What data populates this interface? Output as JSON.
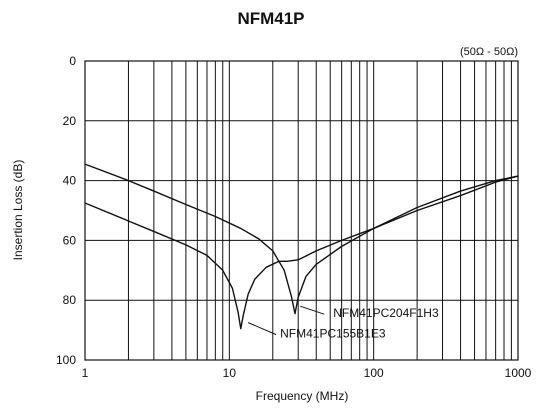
{
  "chart_data": {
    "type": "line",
    "title": "NFM41P",
    "xlabel": "Frequency (MHz)",
    "ylabel": "Insertion Loss (dB)",
    "note": "(50Ω - 50Ω)",
    "x_scale": "log",
    "xlim": [
      1,
      1000
    ],
    "ylim": [
      0,
      100
    ],
    "y_inverted": true,
    "grid": true,
    "x_ticks": [
      {
        "value": 1,
        "label": "1"
      },
      {
        "value": 10,
        "label": "10"
      },
      {
        "value": 100,
        "label": "100"
      },
      {
        "value": 1000,
        "label": "1000"
      }
    ],
    "y_ticks": [
      {
        "value": 0,
        "label": "0"
      },
      {
        "value": 20,
        "label": "20"
      },
      {
        "value": 40,
        "label": "40"
      },
      {
        "value": 60,
        "label": "60"
      },
      {
        "value": 80,
        "label": "80"
      },
      {
        "value": 100,
        "label": "100"
      }
    ],
    "series": [
      {
        "name": "NFM41PC204F1H3",
        "x": [
          1,
          2,
          3,
          5,
          8,
          12,
          16,
          20,
          24,
          27,
          28.5,
          30,
          34,
          40,
          60,
          100,
          200,
          400,
          700,
          1000
        ],
        "y": [
          34.5,
          40,
          43.5,
          48,
          52,
          56,
          59.5,
          63.5,
          70,
          79,
          84.5,
          79,
          72,
          68,
          62,
          56,
          49,
          43.5,
          40,
          38.5
        ]
      },
      {
        "name": "NFM41PC155B1E3",
        "x": [
          1,
          2,
          3,
          5,
          7,
          9,
          10.5,
          11.5,
          12,
          12.5,
          13.5,
          15,
          18,
          22,
          25,
          30,
          40,
          60,
          100,
          200,
          400,
          700,
          1000
        ],
        "y": [
          47.5,
          53.5,
          57,
          61.5,
          65,
          70,
          76,
          84,
          89.5,
          85,
          78,
          73,
          69,
          67,
          67,
          66.5,
          63.5,
          60,
          56,
          50,
          45,
          40.5,
          38.5
        ]
      }
    ],
    "annotations": [
      {
        "text": "NFM41PC204F1H3",
        "series": "NFM41PC204F1H3",
        "at_x": 31,
        "at_y": 82
      },
      {
        "text": "NFM41PC155B1E3",
        "series": "NFM41PC155B1E3",
        "at_x": 13.5,
        "at_y": 87.5
      }
    ],
    "colors": {
      "line": "#111111",
      "grid": "#111111",
      "background": "#ffffff"
    }
  }
}
